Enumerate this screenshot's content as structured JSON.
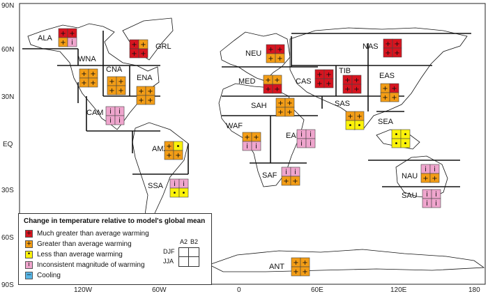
{
  "axes": {
    "lat_ticks": [
      "90N",
      "60N",
      "30N",
      "EQ",
      "30S",
      "60S",
      "90S"
    ],
    "lon_ticks": [
      "120W",
      "60W",
      "0",
      "60E",
      "120E",
      "180"
    ]
  },
  "colors": {
    "much_greater": "#d7141f",
    "greater": "#f39d16",
    "less": "#fbf20a",
    "inconsistent": "#efa5cd",
    "cooling": "#58b6e6"
  },
  "symbols": {
    "much_greater": "+",
    "greater": "+",
    "less": "•",
    "inconsistent": "i",
    "cooling": "−"
  },
  "regions": [
    {
      "label": "ALA",
      "cells": [
        "much_greater",
        "much_greater",
        "greater",
        "inconsistent"
      ]
    },
    {
      "label": "GRL",
      "cells": [
        "much_greater",
        "greater",
        "much_greater",
        "much_greater"
      ]
    },
    {
      "label": "WNA",
      "cells": [
        "greater",
        "greater",
        "greater",
        "greater"
      ]
    },
    {
      "label": "CNA",
      "cells": [
        "greater",
        "greater",
        "greater",
        "greater"
      ]
    },
    {
      "label": "ENA",
      "cells": [
        "greater",
        "greater",
        "greater",
        "greater"
      ]
    },
    {
      "label": "CAM",
      "cells": [
        "inconsistent",
        "inconsistent",
        "inconsistent",
        "inconsistent"
      ]
    },
    {
      "label": "AMZ",
      "cells": [
        "greater",
        "less",
        "greater",
        "greater"
      ]
    },
    {
      "label": "SSA",
      "cells": [
        "inconsistent",
        "inconsistent",
        "less",
        "less"
      ]
    },
    {
      "label": "NEU",
      "cells": [
        "much_greater",
        "much_greater",
        "greater",
        "greater"
      ]
    },
    {
      "label": "MED",
      "cells": [
        "greater",
        "greater",
        "much_greater",
        "much_greater"
      ]
    },
    {
      "label": "SAH",
      "cells": [
        "greater",
        "greater",
        "greater",
        "greater"
      ]
    },
    {
      "label": "WAF",
      "cells": [
        "greater",
        "greater",
        "inconsistent",
        "inconsistent"
      ]
    },
    {
      "label": "EAF",
      "cells": [
        "inconsistent",
        "inconsistent",
        "inconsistent",
        "inconsistent"
      ]
    },
    {
      "label": "SAF",
      "cells": [
        "inconsistent",
        "inconsistent",
        "greater",
        "greater"
      ]
    },
    {
      "label": "CAS",
      "cells": [
        "much_greater",
        "much_greater",
        "much_greater",
        "much_greater"
      ]
    },
    {
      "label": "TIB",
      "cells": [
        "much_greater",
        "much_greater",
        "much_greater",
        "much_greater"
      ]
    },
    {
      "label": "NAS",
      "cells": [
        "much_greater",
        "much_greater",
        "much_greater",
        "much_greater"
      ]
    },
    {
      "label": "EAS",
      "cells": [
        "greater",
        "much_greater",
        "greater",
        "greater"
      ]
    },
    {
      "label": "SAS",
      "cells": [
        "greater",
        "greater",
        "less",
        "less"
      ]
    },
    {
      "label": "SEA",
      "cells": [
        "less",
        "less",
        "less",
        "less"
      ]
    },
    {
      "label": "NAU",
      "cells": [
        "inconsistent",
        "inconsistent",
        "greater",
        "greater"
      ]
    },
    {
      "label": "SAU",
      "cells": [
        "inconsistent",
        "inconsistent",
        "inconsistent",
        "inconsistent"
      ]
    },
    {
      "label": "ANT",
      "cells": [
        "greater",
        "greater",
        "greater",
        "greater"
      ]
    }
  ],
  "legend": {
    "title": "Change in temperature relative to model's global mean",
    "items": [
      {
        "key": "much_greater",
        "text": "Much greater than average warming"
      },
      {
        "key": "greater",
        "text": "Greater than average warming"
      },
      {
        "key": "less",
        "text": "Less than average warming"
      },
      {
        "key": "inconsistent",
        "text": "Inconsistent magnitude of warming"
      },
      {
        "key": "cooling",
        "text": "Cooling"
      }
    ],
    "key_cols": [
      "A2",
      "B2"
    ],
    "key_rows": [
      "DJF",
      "JJA"
    ]
  }
}
